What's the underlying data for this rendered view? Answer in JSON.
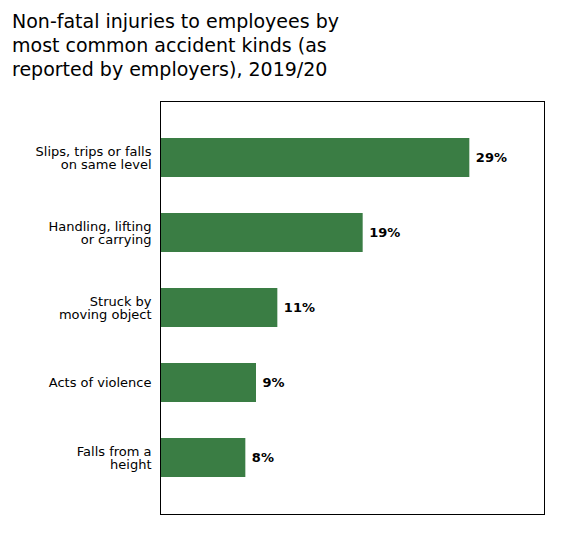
{
  "chart_data": {
    "type": "bar",
    "orientation": "horizontal",
    "title": "Non-fatal injuries to employees by\nmost common accident kinds (as\nreported by employers), 2019/20",
    "categories": [
      "Falls from a\nheight",
      "Acts of violence",
      "Struck by\nmoving object",
      "Handling, lifting\nor carrying",
      "Slips, trips or falls\non same level"
    ],
    "values": [
      8,
      9,
      11,
      19,
      29
    ],
    "value_labels": [
      "8%",
      "9%",
      "11%",
      "19%",
      "29%"
    ],
    "data_labels": true,
    "color": "#3a7d44",
    "xlim": [
      0,
      36
    ],
    "xticks": [],
    "tick_labels": "y",
    "grid": false
  }
}
